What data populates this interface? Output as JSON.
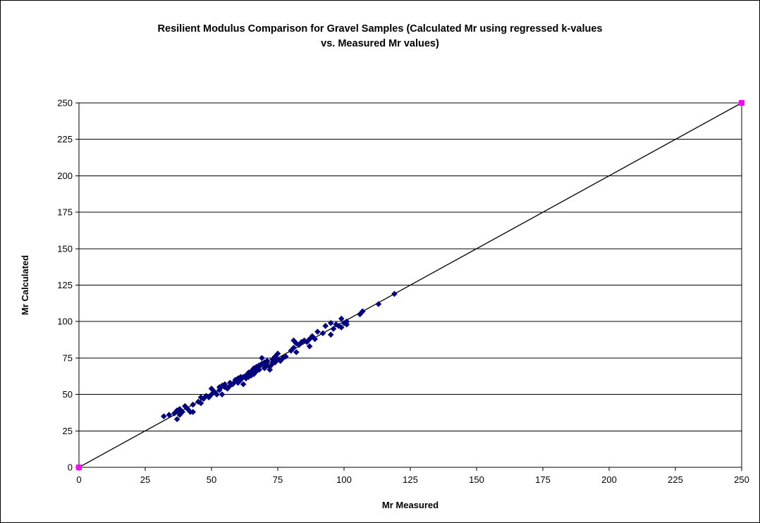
{
  "chart_data": {
    "type": "scatter",
    "title_line1": "Resilient Modulus Comparison for Gravel Samples (Calculated Mr using regressed k-values",
    "title_line2": "vs. Measured Mr values)",
    "xlabel": "Mr Measured",
    "ylabel": "Mr Calculated",
    "xlim": [
      0,
      250
    ],
    "ylim": [
      0,
      250
    ],
    "x_ticks": [
      0,
      25,
      50,
      75,
      100,
      125,
      150,
      175,
      200,
      225,
      250
    ],
    "y_ticks": [
      0,
      25,
      50,
      75,
      100,
      125,
      150,
      175,
      200,
      225,
      250
    ],
    "grid": "horizontal",
    "legend": "none",
    "series": [
      {
        "marker": "diamond",
        "color": "#000080",
        "points": [
          [
            32,
            35
          ],
          [
            34,
            36
          ],
          [
            36,
            37
          ],
          [
            37,
            39
          ],
          [
            37,
            33
          ],
          [
            38,
            36
          ],
          [
            38,
            40
          ],
          [
            39,
            38
          ],
          [
            40,
            42
          ],
          [
            41,
            40
          ],
          [
            42,
            38
          ],
          [
            43,
            38
          ],
          [
            43,
            43
          ],
          [
            45,
            45
          ],
          [
            46,
            44
          ],
          [
            46,
            48
          ],
          [
            47,
            47
          ],
          [
            48,
            49
          ],
          [
            49,
            48
          ],
          [
            50,
            50
          ],
          [
            50,
            54
          ],
          [
            51,
            52
          ],
          [
            52,
            50
          ],
          [
            53,
            53
          ],
          [
            53,
            55
          ],
          [
            54,
            50
          ],
          [
            54,
            56
          ],
          [
            55,
            55
          ],
          [
            55,
            57
          ],
          [
            56,
            54
          ],
          [
            57,
            58
          ],
          [
            57,
            56
          ],
          [
            58,
            57
          ],
          [
            59,
            59
          ],
          [
            59,
            60
          ],
          [
            60,
            58
          ],
          [
            60,
            61
          ],
          [
            61,
            60
          ],
          [
            61,
            62
          ],
          [
            62,
            57
          ],
          [
            62,
            62
          ],
          [
            63,
            63
          ],
          [
            63,
            61
          ],
          [
            64,
            62
          ],
          [
            64,
            65
          ],
          [
            65,
            63
          ],
          [
            65,
            66
          ],
          [
            66,
            64
          ],
          [
            66,
            68
          ],
          [
            67,
            66
          ],
          [
            67,
            69
          ],
          [
            68,
            67
          ],
          [
            68,
            70
          ],
          [
            69,
            71
          ],
          [
            69,
            75
          ],
          [
            70,
            68
          ],
          [
            70,
            72
          ],
          [
            71,
            70
          ],
          [
            71,
            73
          ],
          [
            72,
            69
          ],
          [
            72,
            67
          ],
          [
            73,
            71
          ],
          [
            73,
            74
          ],
          [
            74,
            72
          ],
          [
            74,
            76
          ],
          [
            75,
            74
          ],
          [
            75,
            78
          ],
          [
            76,
            73
          ],
          [
            77,
            75
          ],
          [
            78,
            76
          ],
          [
            80,
            80
          ],
          [
            81,
            87
          ],
          [
            81,
            82
          ],
          [
            82,
            79
          ],
          [
            82,
            85
          ],
          [
            83,
            84
          ],
          [
            84,
            86
          ],
          [
            85,
            87
          ],
          [
            86,
            86
          ],
          [
            87,
            83
          ],
          [
            87,
            88
          ],
          [
            88,
            90
          ],
          [
            89,
            88
          ],
          [
            90,
            93
          ],
          [
            92,
            92
          ],
          [
            93,
            97
          ],
          [
            95,
            91
          ],
          [
            95,
            99
          ],
          [
            96,
            95
          ],
          [
            97,
            98
          ],
          [
            98,
            97
          ],
          [
            99,
            102
          ],
          [
            99,
            96
          ],
          [
            100,
            99
          ],
          [
            101,
            98
          ],
          [
            101,
            100
          ],
          [
            106,
            105
          ],
          [
            107,
            107
          ],
          [
            113,
            112
          ],
          [
            119,
            119
          ]
        ]
      },
      {
        "marker": "square",
        "color": "#ff00ff",
        "points": [
          [
            0,
            0
          ],
          [
            250,
            250
          ]
        ]
      }
    ],
    "reference_line": {
      "from": [
        0,
        0
      ],
      "to": [
        250,
        250
      ],
      "color": "#000000"
    }
  }
}
